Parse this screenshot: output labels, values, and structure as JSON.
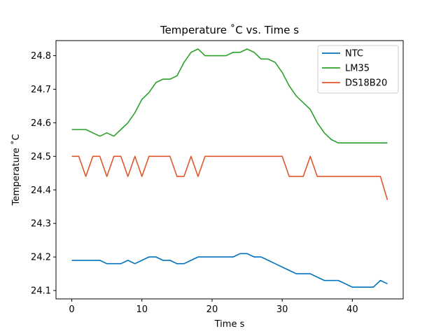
{
  "chart_data": {
    "type": "line",
    "title": "Temperature ˚C vs. Time s",
    "xlabel": "Time s",
    "ylabel": "Temperature ˚C",
    "xlim": [
      -2.25,
      47.25
    ],
    "ylim": [
      24.075,
      24.845
    ],
    "xticks": [
      0,
      10,
      20,
      30,
      40
    ],
    "yticks": [
      24.1,
      24.2,
      24.3,
      24.4,
      24.5,
      24.6,
      24.7,
      24.8
    ],
    "ytick_labels": [
      "24.1",
      "24.2",
      "24.3",
      "24.4",
      "24.5",
      "24.6",
      "24.7",
      "24.8"
    ],
    "grid": false,
    "legend_position": "top-right",
    "x": [
      0,
      1,
      2,
      3,
      4,
      5,
      6,
      7,
      8,
      9,
      10,
      11,
      12,
      13,
      14,
      15,
      16,
      17,
      18,
      19,
      20,
      21,
      22,
      23,
      24,
      25,
      26,
      27,
      28,
      29,
      30,
      31,
      32,
      33,
      34,
      35,
      36,
      37,
      38,
      39,
      40,
      41,
      42,
      43,
      44,
      45
    ],
    "series": [
      {
        "name": "NTC",
        "color": "#0072bd",
        "values": [
          24.19,
          24.19,
          24.19,
          24.19,
          24.19,
          24.18,
          24.18,
          24.18,
          24.19,
          24.18,
          24.19,
          24.2,
          24.2,
          24.19,
          24.19,
          24.18,
          24.18,
          24.19,
          24.2,
          24.2,
          24.2,
          24.2,
          24.2,
          24.2,
          24.21,
          24.21,
          24.2,
          24.2,
          24.19,
          24.18,
          24.17,
          24.16,
          24.15,
          24.15,
          24.15,
          24.14,
          24.13,
          24.13,
          24.13,
          24.12,
          24.11,
          24.11,
          24.11,
          24.11,
          24.13,
          24.12
        ]
      },
      {
        "name": "LM35",
        "color": "#2ca02c",
        "values": [
          24.58,
          24.58,
          24.58,
          24.57,
          24.56,
          24.57,
          24.56,
          24.58,
          24.6,
          24.63,
          24.67,
          24.69,
          24.72,
          24.73,
          24.73,
          24.74,
          24.78,
          24.81,
          24.82,
          24.8,
          24.8,
          24.8,
          24.8,
          24.81,
          24.81,
          24.82,
          24.81,
          24.79,
          24.79,
          24.78,
          24.75,
          24.71,
          24.68,
          24.66,
          24.64,
          24.6,
          24.57,
          24.55,
          24.54,
          24.54,
          24.54,
          24.54,
          24.54,
          24.54,
          24.54,
          24.54
        ]
      },
      {
        "name": "DS18B20",
        "color": "#e0562b",
        "values": [
          24.5,
          24.5,
          24.44,
          24.5,
          24.5,
          24.44,
          24.5,
          24.5,
          24.44,
          24.5,
          24.44,
          24.5,
          24.5,
          24.5,
          24.5,
          24.44,
          24.44,
          24.5,
          24.44,
          24.5,
          24.5,
          24.5,
          24.5,
          24.5,
          24.5,
          24.5,
          24.5,
          24.5,
          24.5,
          24.5,
          24.5,
          24.44,
          24.44,
          24.44,
          24.5,
          24.44,
          24.44,
          24.44,
          24.44,
          24.44,
          24.44,
          24.44,
          24.44,
          24.44,
          24.44,
          24.37
        ]
      }
    ]
  }
}
